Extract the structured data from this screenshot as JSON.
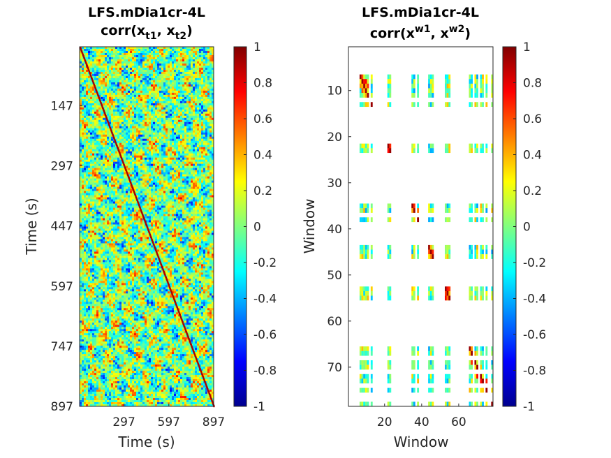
{
  "chart_data": [
    {
      "type": "heatmap",
      "title": "LFS.mDia1cr-4L",
      "subtitle": {
        "prefix": "corr(x",
        "sub1": "t1",
        "mid": ", x",
        "sub2": "t2",
        "suffix": ")"
      },
      "xlabel": "Time (s)",
      "ylabel": "Time (s)",
      "xlim": [
        0,
        897
      ],
      "ylim": [
        0,
        897
      ],
      "y_reversed": true,
      "xticks": [
        297,
        597,
        897
      ],
      "yticks": [
        147,
        297,
        447,
        597,
        747,
        897
      ],
      "clim": [
        -1,
        1
      ],
      "colormap": "jet",
      "colorbar_ticks": [
        1,
        0.8,
        0.6,
        0.4,
        0.2,
        0,
        -0.2,
        -0.4,
        -0.6,
        -0.8,
        -1
      ],
      "diagonal_value": 1,
      "off_diagonal_range": [
        -0.5,
        0.5
      ]
    },
    {
      "type": "heatmap",
      "title": "LFS.mDia1cr-4L",
      "subtitle": {
        "prefix": "corr(x",
        "sup1": "w1",
        "mid": ", x",
        "sup2": "w2",
        "suffix": ")"
      },
      "xlabel": "Window",
      "ylabel": "Window",
      "xlim": [
        1,
        78
      ],
      "ylim": [
        1,
        78
      ],
      "y_reversed": true,
      "xticks": [
        20,
        40,
        60
      ],
      "yticks": [
        10,
        20,
        30,
        40,
        50,
        60,
        70
      ],
      "clim": [
        -1,
        1
      ],
      "colormap": "jet",
      "colorbar_ticks": [
        1,
        0.8,
        0.6,
        0.4,
        0.2,
        0,
        -0.2,
        -0.4,
        -0.6,
        -0.8,
        -1
      ],
      "valid_windows": [
        7,
        8,
        9,
        10,
        11,
        13,
        22,
        23,
        35,
        36,
        38,
        44,
        45,
        46,
        53,
        54,
        55,
        66,
        67,
        69,
        70,
        72,
        73,
        75,
        78
      ]
    }
  ]
}
